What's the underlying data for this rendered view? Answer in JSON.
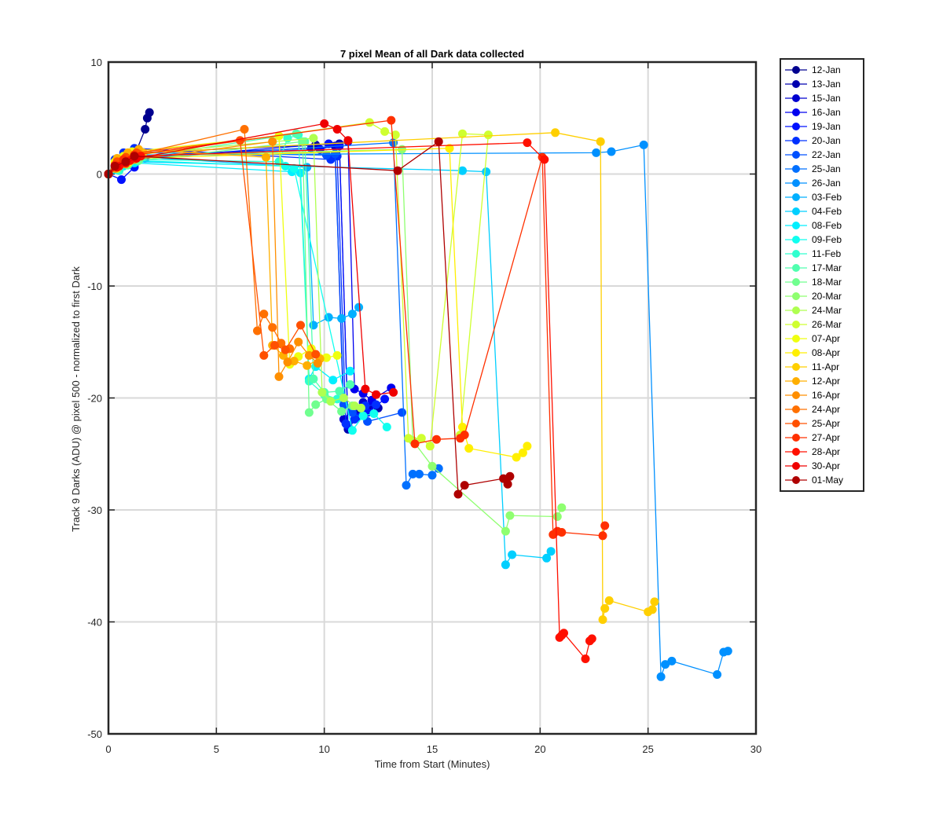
{
  "chart_data": {
    "type": "line",
    "title": "7 pixel Mean of all Dark data collected",
    "xlabel": "Time from Start (Minutes)",
    "ylabel": "Track 9 Darks (ADU) @ pixel 500 - normalized to first Dark",
    "xlim": [
      0,
      30
    ],
    "ylim": [
      -50,
      10
    ],
    "xticks": [
      0,
      5,
      10,
      15,
      20,
      25,
      30
    ],
    "yticks": [
      10,
      0,
      -10,
      -20,
      -30,
      -40,
      -50
    ],
    "grid": true,
    "legend_position": "outside-right",
    "series": [
      {
        "name": "12-Jan",
        "color": "#00008F",
        "x": [
          0,
          0.4,
          0.9,
          1.3,
          1.7,
          1.8,
          1.9
        ],
        "y": [
          0,
          0.6,
          1.3,
          2.1,
          4.0,
          5.0,
          5.5
        ]
      },
      {
        "name": "13-Jan",
        "color": "#0000AF",
        "x": [
          0,
          0.4,
          0.9,
          1.4,
          9.6,
          10.7,
          11.1,
          11.6,
          12.1,
          12.5
        ],
        "y": [
          0,
          0.8,
          1.5,
          1.9,
          2.6,
          2.7,
          -22.8,
          -21.4,
          -20.8,
          -20.9
        ]
      },
      {
        "name": "15-Jan",
        "color": "#0000CF",
        "x": [
          0,
          0.3,
          0.8,
          1.2,
          9.4,
          10.5,
          10.9,
          11.3,
          11.8,
          12.3
        ],
        "y": [
          0,
          0.7,
          1.1,
          1.6,
          2.3,
          2.5,
          -21.9,
          -21.0,
          -20.4,
          -20.6
        ]
      },
      {
        "name": "16-Jan",
        "color": "#0000EF",
        "x": [
          0,
          0.5,
          1.0,
          1.3,
          9.8,
          11.1,
          11.4,
          11.8,
          12.2,
          13.1
        ],
        "y": [
          0,
          0.5,
          1.2,
          1.5,
          2.2,
          2.9,
          -19.2,
          -19.6,
          -20.2,
          -19.1
        ]
      },
      {
        "name": "19-Jan",
        "color": "#0010FF",
        "x": [
          0,
          0.6,
          1.2,
          1.7,
          10.2,
          10.7,
          11.1,
          11.5,
          12.0,
          12.8
        ],
        "y": [
          0,
          -0.5,
          0.6,
          1.4,
          2.7,
          2.5,
          -22.5,
          -21.7,
          -21.3,
          -20.1
        ]
      },
      {
        "name": "20-Jan",
        "color": "#0030FF",
        "x": [
          0,
          0.3,
          0.7,
          1.2,
          10.3,
          10.6,
          11.0,
          11.4,
          11.9,
          12.4
        ],
        "y": [
          0,
          1.3,
          1.9,
          2.3,
          1.3,
          1.6,
          -22.3,
          -21.9,
          -20.7,
          -20.6
        ]
      },
      {
        "name": "22-Jan",
        "color": "#0050FF",
        "x": [
          0,
          0.4,
          0.8,
          1.3,
          10.1,
          10.5,
          10.9,
          11.3,
          12.0,
          13.6
        ],
        "y": [
          0,
          0.9,
          1.4,
          1.9,
          1.7,
          1.8,
          -20.6,
          -21.3,
          -22.1,
          -21.3
        ]
      },
      {
        "name": "25-Jan",
        "color": "#0070FF",
        "x": [
          0,
          0.5,
          1.0,
          1.5,
          13.2,
          13.8,
          14.1,
          14.4,
          15.0,
          15.3
        ],
        "y": [
          0,
          0.6,
          1.0,
          1.4,
          2.8,
          -27.8,
          -26.8,
          -26.8,
          -26.9,
          -26.3
        ]
      },
      {
        "name": "26-Jan",
        "color": "#0090FF",
        "x": [
          0,
          0.4,
          0.8,
          1.2,
          22.6,
          23.3,
          24.8,
          25.6,
          25.8,
          26.1,
          28.2,
          28.5,
          28.7
        ],
        "y": [
          0,
          0.8,
          1.3,
          1.7,
          1.9,
          2.0,
          2.6,
          -44.9,
          -43.8,
          -43.5,
          -44.7,
          -42.7,
          -42.6
        ]
      },
      {
        "name": "03-Feb",
        "color": "#00B0FF",
        "x": [
          0,
          0.5,
          1.0,
          1.6,
          9.2,
          9.5,
          10.2,
          10.8,
          11.3,
          11.6
        ],
        "y": [
          0,
          0.5,
          1.0,
          1.5,
          0.6,
          -13.5,
          -12.8,
          -12.9,
          -12.5,
          -11.9
        ]
      },
      {
        "name": "04-Feb",
        "color": "#00CFFF",
        "x": [
          0,
          0.4,
          0.9,
          1.3,
          16.4,
          17.5,
          18.4,
          18.7,
          20.3,
          20.5
        ],
        "y": [
          0,
          0.4,
          0.8,
          1.1,
          0.3,
          0.2,
          -34.9,
          -34.0,
          -34.3,
          -33.7
        ]
      },
      {
        "name": "08-Feb",
        "color": "#00EFFF",
        "x": [
          0,
          0.3,
          0.7,
          1.2,
          8.5,
          8.9,
          9.3,
          9.6,
          10.4,
          11.2
        ],
        "y": [
          0,
          0.4,
          0.7,
          1.0,
          0.2,
          0.1,
          -18.3,
          -17.2,
          -18.4,
          -17.6
        ]
      },
      {
        "name": "09-Feb",
        "color": "#10FFEF",
        "x": [
          0,
          0.4,
          0.8,
          1.3,
          8.2,
          8.6,
          11.3,
          11.8,
          12.3,
          12.9
        ],
        "y": [
          0,
          0.5,
          0.9,
          1.2,
          0.7,
          0.5,
          -22.9,
          -21.6,
          -21.4,
          -22.6
        ]
      },
      {
        "name": "11-Feb",
        "color": "#30FFCF",
        "x": [
          0,
          0.5,
          0.9,
          1.4,
          7.9,
          8.3,
          8.8,
          9.3,
          10.0,
          10.6
        ],
        "y": [
          0,
          0.3,
          0.8,
          1.3,
          1.1,
          3.2,
          3.5,
          -18.5,
          -19.7,
          -20.1
        ]
      },
      {
        "name": "17-Mar",
        "color": "#50FFAF",
        "x": [
          0,
          0.3,
          0.8,
          1.2,
          8.7,
          9.1,
          9.5,
          10.0,
          10.7,
          11.2
        ],
        "y": [
          0,
          0.6,
          1.0,
          1.4,
          3.6,
          2.9,
          -18.3,
          -19.5,
          -19.4,
          -18.8
        ]
      },
      {
        "name": "18-Mar",
        "color": "#70FF8F",
        "x": [
          0,
          0.4,
          0.9,
          1.4,
          9.0,
          9.3,
          9.6,
          10.1,
          10.8,
          11.3
        ],
        "y": [
          0,
          0.5,
          0.8,
          1.2,
          2.9,
          -21.3,
          -20.6,
          -20.1,
          -21.2,
          -20.7
        ]
      },
      {
        "name": "20-Mar",
        "color": "#8FFF70",
        "x": [
          0,
          0.5,
          1.0,
          1.5,
          13.6,
          14.1,
          15.0,
          18.4,
          18.6,
          20.8,
          21.0
        ],
        "y": [
          0,
          0.7,
          1.1,
          1.6,
          2.2,
          -23.8,
          -26.1,
          -31.9,
          -30.5,
          -30.6,
          -29.8
        ]
      },
      {
        "name": "24-Mar",
        "color": "#AFFF50",
        "x": [
          0,
          0.4,
          0.9,
          1.3,
          9.5,
          9.9,
          10.3,
          10.9,
          11.4,
          11.7
        ],
        "y": [
          0,
          0.9,
          1.4,
          1.8,
          3.2,
          -19.5,
          -20.3,
          -20.0,
          -20.7,
          -20.9
        ]
      },
      {
        "name": "26-Mar",
        "color": "#CFFF30",
        "x": [
          0,
          0.5,
          0.9,
          1.4,
          12.1,
          12.8,
          13.3,
          13.9,
          14.5,
          14.9,
          16.4,
          17.6,
          16.3
        ],
        "y": [
          0,
          0.8,
          1.2,
          1.7,
          4.6,
          3.8,
          3.5,
          -23.6,
          -23.6,
          -24.3,
          3.6,
          3.5,
          -23.3
        ]
      },
      {
        "name": "07-Apr",
        "color": "#EFFF10",
        "x": [
          0,
          0.3,
          0.7,
          1.1,
          7.9,
          8.4,
          8.8,
          9.4,
          10.1,
          10.6
        ],
        "y": [
          0,
          1.1,
          1.6,
          2.0,
          3.4,
          -17.0,
          -16.3,
          -15.6,
          -16.4,
          -16.2
        ]
      },
      {
        "name": "08-Apr",
        "color": "#FFEF00",
        "x": [
          0,
          0.4,
          0.9,
          1.3,
          15.8,
          16.4,
          16.7,
          18.9,
          19.2,
          19.4
        ],
        "y": [
          0,
          0.5,
          1.0,
          1.4,
          2.3,
          -22.6,
          -24.5,
          -25.3,
          -24.9,
          -24.3
        ]
      },
      {
        "name": "11-Apr",
        "color": "#FFCF00",
        "x": [
          0,
          0.5,
          1.0,
          1.6,
          20.7,
          22.8,
          22.9,
          23.0,
          23.2,
          25.0,
          25.2,
          25.3
        ],
        "y": [
          0,
          0.8,
          1.3,
          1.9,
          3.7,
          2.9,
          -39.8,
          -38.8,
          -38.1,
          -39.1,
          -38.9,
          -38.2
        ]
      },
      {
        "name": "12-Apr",
        "color": "#FFAF00",
        "x": [
          0,
          0.4,
          0.9,
          1.4,
          7.3,
          7.6,
          8.1,
          8.6,
          9.2,
          9.8
        ],
        "y": [
          0,
          1.4,
          1.9,
          2.2,
          1.5,
          -15.3,
          -16.2,
          -16.7,
          -17.1,
          -16.5
        ]
      },
      {
        "name": "16-Apr",
        "color": "#FF8F00",
        "x": [
          0,
          0.3,
          0.8,
          1.2,
          7.6,
          7.9,
          8.3,
          8.8,
          9.3,
          9.7
        ],
        "y": [
          0,
          0.5,
          0.9,
          1.3,
          2.9,
          -18.1,
          -16.8,
          -15.0,
          -16.2,
          -16.9
        ]
      },
      {
        "name": "24-Apr",
        "color": "#FF7000",
        "x": [
          0,
          0.5,
          0.9,
          1.4,
          6.3,
          6.9,
          7.2,
          7.6,
          8.0,
          8.4
        ],
        "y": [
          0,
          1.0,
          1.3,
          1.8,
          4.0,
          -14.0,
          -12.5,
          -13.7,
          -15.1,
          -15.6
        ]
      },
      {
        "name": "25-Apr",
        "color": "#FF5000",
        "x": [
          0,
          0.4,
          0.8,
          1.3,
          6.1,
          7.2,
          7.7,
          8.2,
          8.9,
          9.6
        ],
        "y": [
          0,
          1.1,
          1.5,
          1.9,
          3.0,
          -16.2,
          -15.3,
          -15.7,
          -13.5,
          -16.1
        ]
      },
      {
        "name": "27-Apr",
        "color": "#FF3000",
        "x": [
          0,
          0.3,
          0.7,
          1.2,
          13.1,
          14.2,
          15.2,
          16.3,
          16.5,
          20.1,
          20.6,
          20.8,
          21.0,
          22.9,
          23.0
        ],
        "y": [
          0,
          0.8,
          1.3,
          1.7,
          4.8,
          -24.1,
          -23.7,
          -23.6,
          -23.3,
          1.5,
          -32.2,
          -31.9,
          -32.0,
          -32.3,
          -31.4
        ]
      },
      {
        "name": "28-Apr",
        "color": "#FF1000",
        "x": [
          0,
          0.5,
          1.0,
          1.5,
          19.4,
          20.2,
          20.9,
          21.0,
          21.1,
          22.1,
          22.3,
          22.4
        ],
        "y": [
          0,
          0.7,
          1.2,
          1.6,
          2.8,
          1.3,
          -41.4,
          -41.2,
          -41.0,
          -43.3,
          -41.7,
          -41.5
        ]
      },
      {
        "name": "30-Apr",
        "color": "#EF0000",
        "x": [
          0,
          0.4,
          0.8,
          1.3,
          10.0,
          10.6,
          11.1,
          11.9,
          12.4,
          13.2
        ],
        "y": [
          0,
          0.6,
          1.0,
          1.4,
          4.5,
          4.0,
          3.0,
          -19.2,
          -19.7,
          -19.5
        ]
      },
      {
        "name": "01-May",
        "color": "#AF0000",
        "x": [
          0,
          0.3,
          0.8,
          1.2,
          13.4,
          15.3,
          16.2,
          16.5,
          18.3,
          18.5,
          18.6
        ],
        "y": [
          0,
          0.7,
          1.1,
          1.6,
          0.3,
          2.9,
          -28.6,
          -27.8,
          -27.2,
          -27.7,
          -27.0
        ]
      }
    ]
  }
}
